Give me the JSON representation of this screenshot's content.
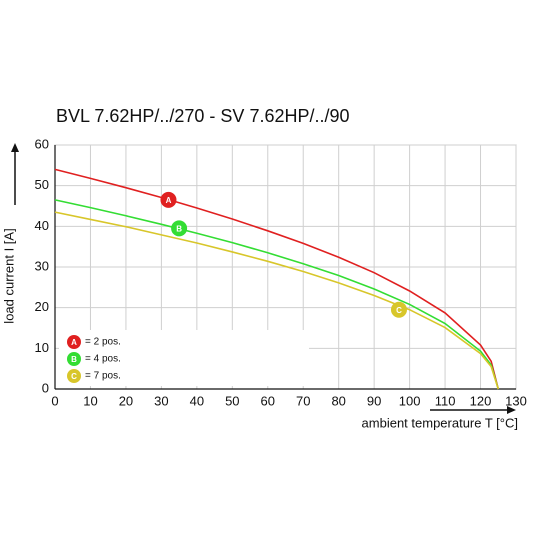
{
  "chart_data": {
    "type": "line",
    "title": "BVL 7.62HP/../270 - SV 7.62HP/../90",
    "x_label": "ambient temperature T [°C]",
    "y_label": "load current I [A]",
    "x": [
      0,
      10,
      20,
      30,
      40,
      50,
      60,
      70,
      80,
      90,
      100,
      110,
      120,
      123,
      125
    ],
    "series": [
      {
        "name": "A",
        "label": "= 2 pos.",
        "color": "#e02020",
        "values": [
          54,
          51.8,
          49.5,
          47.1,
          44.5,
          41.8,
          38.9,
          35.8,
          32.4,
          28.6,
          24.1,
          18.7,
          10.8,
          6.8,
          0
        ],
        "marker": {
          "x": 32,
          "y": 46.5
        }
      },
      {
        "name": "B",
        "label": "= 4 pos.",
        "color": "#33dd33",
        "values": [
          46.5,
          44.6,
          42.6,
          40.5,
          38.3,
          36.0,
          33.5,
          30.8,
          27.9,
          24.6,
          20.8,
          16.1,
          9.3,
          5.9,
          0
        ],
        "marker": {
          "x": 35,
          "y": 39.5
        }
      },
      {
        "name": "C",
        "label": "= 7 pos.",
        "color": "#d8c62a",
        "values": [
          43.5,
          41.7,
          39.9,
          37.9,
          35.9,
          33.7,
          31.4,
          28.9,
          26.1,
          23.0,
          19.5,
          15.1,
          8.7,
          5.5,
          0
        ],
        "marker": {
          "x": 97,
          "y": 19.5
        }
      }
    ],
    "xlim": [
      0,
      130
    ],
    "xticks": [
      0,
      10,
      20,
      30,
      40,
      50,
      60,
      70,
      80,
      90,
      100,
      110,
      120,
      130
    ],
    "ylim": [
      0,
      60
    ],
    "yticks": [
      0,
      10,
      20,
      30,
      40,
      50,
      60
    ],
    "grid": true
  }
}
